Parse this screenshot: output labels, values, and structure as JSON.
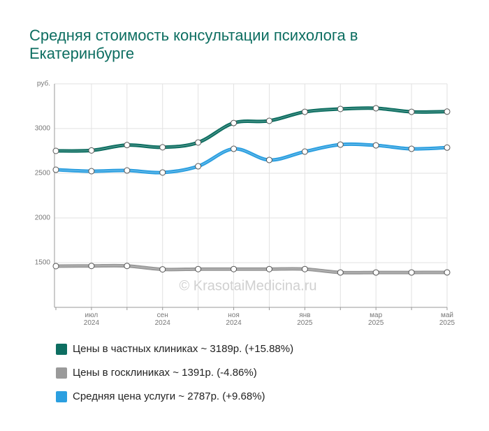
{
  "chart_data": {
    "type": "line",
    "title": "Средняя стоимость консультации психолога в Екатеринбурге",
    "watermark": "© KrasotaiMedicina.ru",
    "categories": [
      null,
      "июл 2024",
      null,
      "сен 2024",
      null,
      "ноя 2024",
      null,
      "янв 2025",
      null,
      "мар 2025",
      null,
      "май 2025"
    ],
    "series": [
      {
        "name": "Цены в частных клиниках ~ 3189р. (+15.88%)",
        "color": "#0d6e61",
        "values": [
          2750,
          2755,
          2815,
          2790,
          2844,
          3062,
          3086,
          3187,
          3219,
          3227,
          3187,
          3189
        ]
      },
      {
        "name": "Цены в госклиниках ~ 1391р. (-4.86%)",
        "color": "#9a9a9a",
        "values": [
          1461,
          1463,
          1463,
          1425,
          1428,
          1428,
          1428,
          1428,
          1390,
          1390,
          1390,
          1391
        ]
      },
      {
        "name": "Средняя цена услуги ~ 2787р. (+9.68%)",
        "color": "#2b9fe0",
        "values": [
          2539,
          2523,
          2531,
          2508,
          2578,
          2773,
          2648,
          2742,
          2820,
          2812,
          2773,
          2787
        ]
      }
    ],
    "ylim": [
      1000,
      3500
    ],
    "yticks": [
      1500,
      2000,
      2500,
      3000,
      {
        "value": 3500,
        "label": "руб."
      }
    ],
    "grid": true
  }
}
